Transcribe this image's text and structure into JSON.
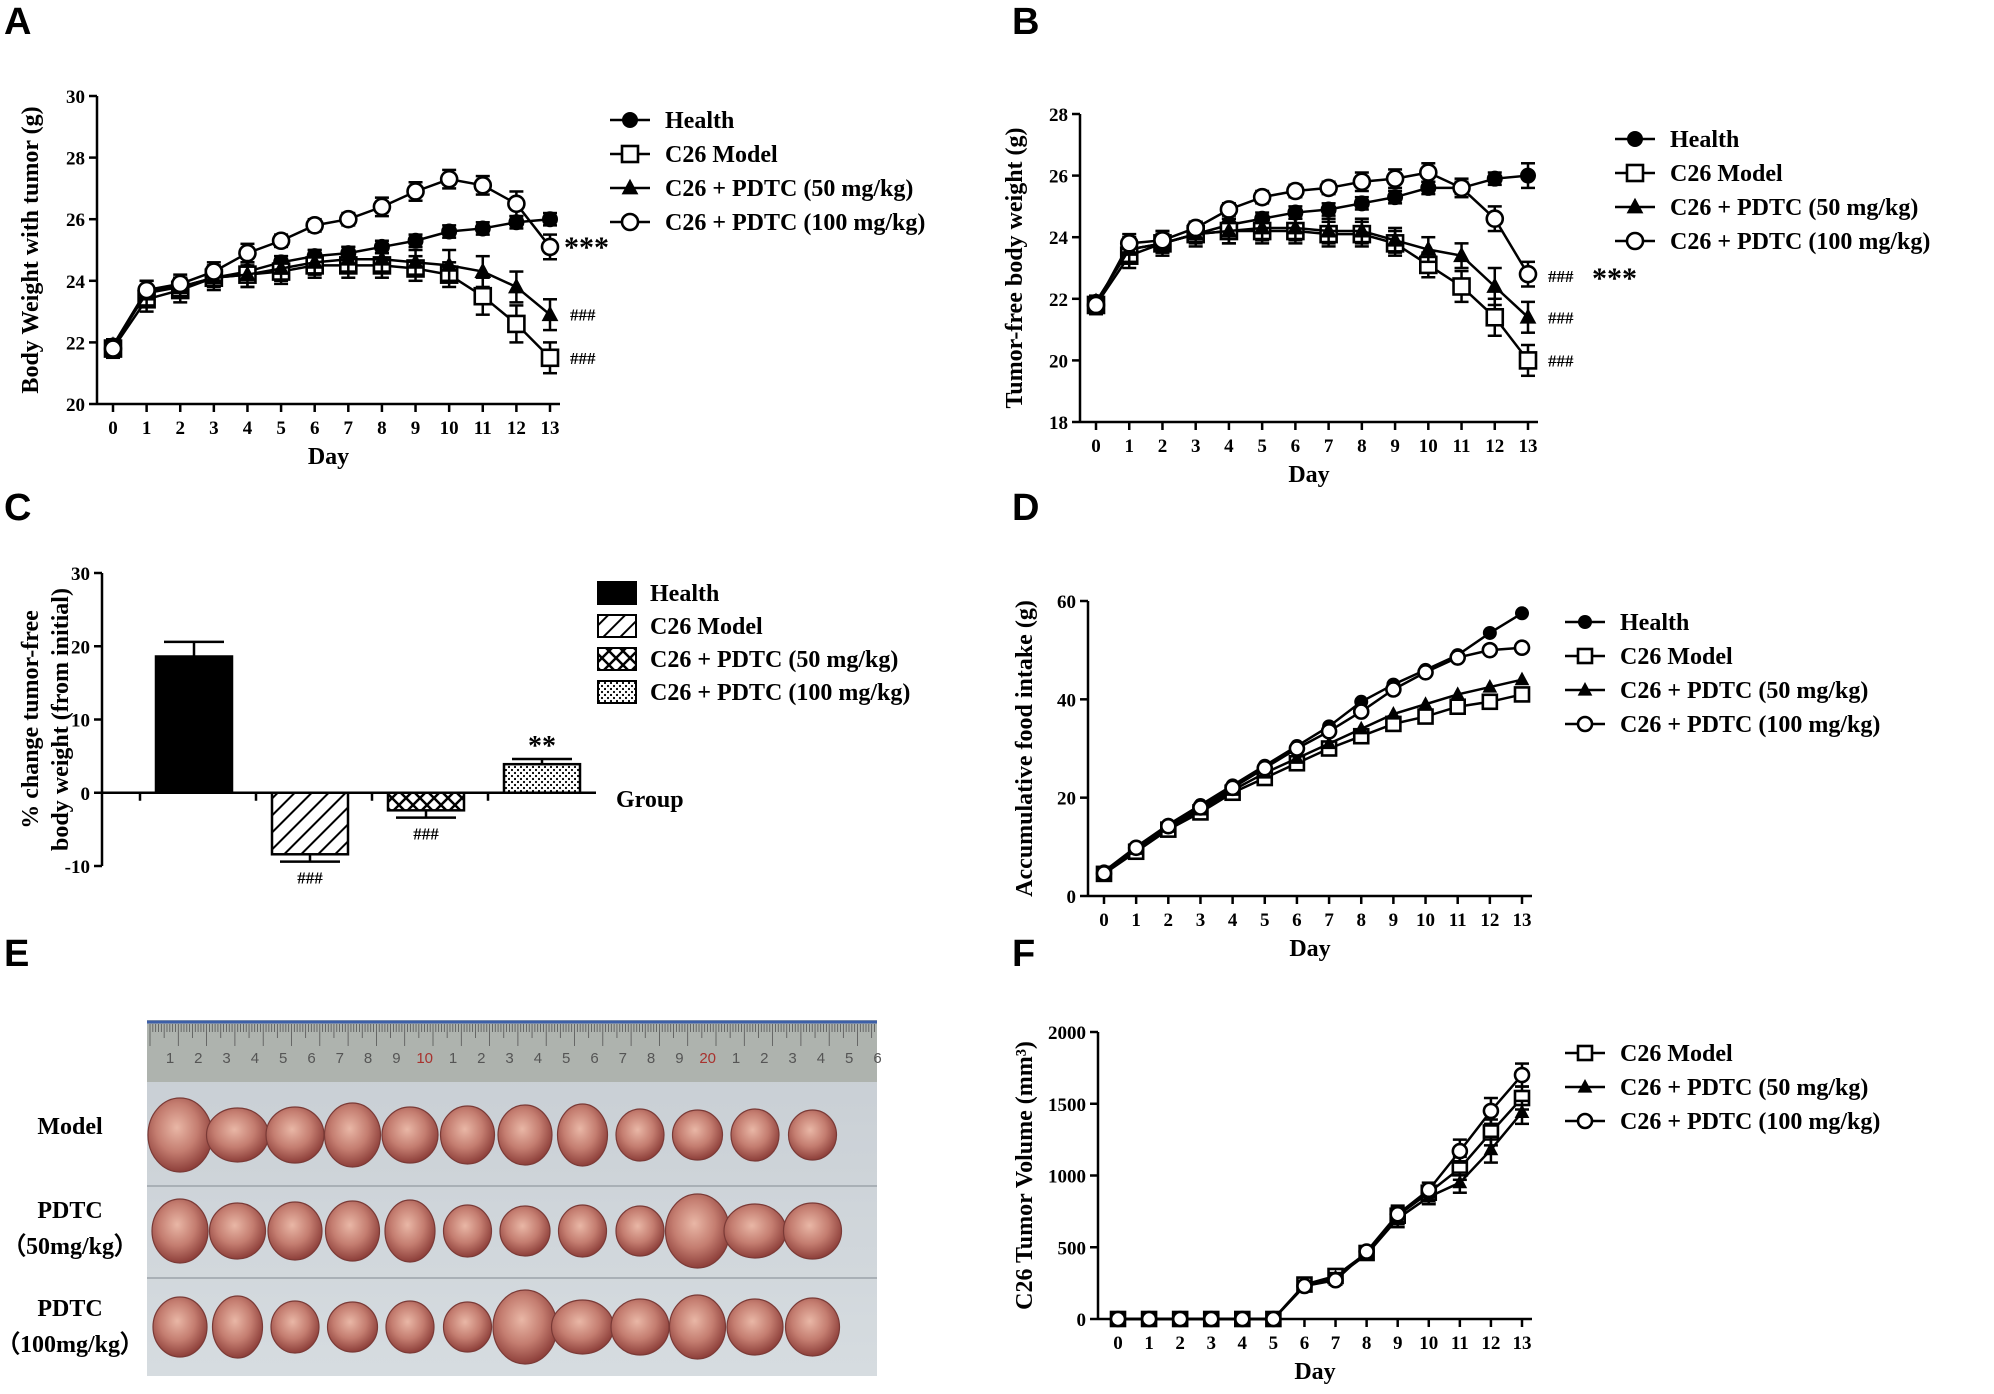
{
  "panels": {
    "A": "A",
    "B": "B",
    "C": "C",
    "D": "D",
    "E": "E",
    "F": "F"
  },
  "chart_data": [
    {
      "id": "A",
      "type": "line",
      "xlabel": "Day",
      "ylabel": "Body Weight with tumor (g)",
      "x": [
        0,
        1,
        2,
        3,
        4,
        5,
        6,
        7,
        8,
        9,
        10,
        11,
        12,
        13
      ],
      "xticks": [
        "0",
        "1",
        "2",
        "3",
        "4",
        "5",
        "6",
        "7",
        "8",
        "9",
        "10",
        "11",
        "12",
        "13"
      ],
      "yticks": [
        "20",
        "22",
        "24",
        "26",
        "28",
        "30"
      ],
      "ylim": [
        20,
        30
      ],
      "series": [
        {
          "name": "Health",
          "marker": "filled-circle",
          "values": [
            21.9,
            23.7,
            23.8,
            24.1,
            24.3,
            24.6,
            24.8,
            24.9,
            25.1,
            25.3,
            25.6,
            25.7,
            25.9,
            26.0
          ],
          "err": [
            0.2,
            0.3,
            0.3,
            0.2,
            0.2,
            0.2,
            0.2,
            0.2,
            0.2,
            0.2,
            0.2,
            0.2,
            0.2,
            0.2
          ]
        },
        {
          "name": "C26 Model",
          "marker": "open-square",
          "values": [
            21.8,
            23.4,
            23.7,
            24.1,
            24.2,
            24.3,
            24.5,
            24.5,
            24.5,
            24.4,
            24.2,
            23.5,
            22.6,
            21.5
          ],
          "err": [
            0.3,
            0.4,
            0.4,
            0.4,
            0.4,
            0.4,
            0.4,
            0.4,
            0.4,
            0.4,
            0.4,
            0.6,
            0.6,
            0.5
          ]
        },
        {
          "name": "C26 + PDTC (50 mg/kg)",
          "marker": "filled-triangle",
          "values": [
            21.9,
            23.6,
            23.8,
            24.1,
            24.2,
            24.4,
            24.6,
            24.7,
            24.7,
            24.6,
            24.5,
            24.3,
            23.8,
            22.9
          ],
          "err": [
            0.2,
            0.4,
            0.3,
            0.3,
            0.4,
            0.4,
            0.4,
            0.4,
            0.4,
            0.4,
            0.5,
            0.5,
            0.5,
            0.5
          ]
        },
        {
          "name": "C26 + PDTC (100 mg/kg)",
          "marker": "open-circle",
          "values": [
            21.8,
            23.7,
            23.9,
            24.3,
            24.9,
            25.3,
            25.8,
            26.0,
            26.4,
            26.9,
            27.3,
            27.1,
            26.5,
            25.1
          ],
          "err": [
            0.2,
            0.3,
            0.3,
            0.3,
            0.3,
            0.2,
            0.2,
            0.2,
            0.3,
            0.3,
            0.3,
            0.3,
            0.4,
            0.4
          ]
        }
      ],
      "legend": [
        "Health",
        "C26 Model",
        "C26 + PDTC (50 mg/kg)",
        "C26 + PDTC (100 mg/kg)"
      ],
      "annotations": [
        "***",
        "###",
        "###"
      ]
    },
    {
      "id": "B",
      "type": "line",
      "xlabel": "Day",
      "ylabel": "Tumor-free body weight (g)",
      "x": [
        0,
        1,
        2,
        3,
        4,
        5,
        6,
        7,
        8,
        9,
        10,
        11,
        12,
        13
      ],
      "xticks": [
        "0",
        "1",
        "2",
        "3",
        "4",
        "5",
        "6",
        "7",
        "8",
        "9",
        "10",
        "11",
        "12",
        "13"
      ],
      "yticks": [
        "18",
        "20",
        "22",
        "24",
        "26",
        "28"
      ],
      "ylim": [
        18,
        28
      ],
      "series": [
        {
          "name": "Health",
          "marker": "filled-circle",
          "values": [
            21.9,
            23.6,
            23.8,
            24.1,
            24.4,
            24.6,
            24.8,
            24.9,
            25.1,
            25.3,
            25.6,
            25.6,
            25.9,
            26.0
          ],
          "err": [
            0.2,
            0.3,
            0.3,
            0.2,
            0.2,
            0.2,
            0.2,
            0.2,
            0.2,
            0.2,
            0.2,
            0.2,
            0.2,
            0.4
          ]
        },
        {
          "name": "C26 Model",
          "marker": "open-square",
          "values": [
            21.8,
            23.4,
            23.8,
            24.1,
            24.2,
            24.2,
            24.2,
            24.1,
            24.1,
            23.8,
            23.1,
            22.4,
            21.4,
            20.0
          ],
          "err": [
            0.3,
            0.4,
            0.4,
            0.4,
            0.4,
            0.4,
            0.4,
            0.4,
            0.4,
            0.4,
            0.4,
            0.5,
            0.6,
            0.5
          ]
        },
        {
          "name": "C26 + PDTC (50 mg/kg)",
          "marker": "filled-triangle",
          "values": [
            21.9,
            23.6,
            23.8,
            24.1,
            24.2,
            24.3,
            24.3,
            24.2,
            24.2,
            23.9,
            23.6,
            23.4,
            22.4,
            21.4
          ],
          "err": [
            0.2,
            0.4,
            0.3,
            0.3,
            0.4,
            0.4,
            0.4,
            0.4,
            0.4,
            0.4,
            0.4,
            0.4,
            0.6,
            0.5
          ]
        },
        {
          "name": "C26 + PDTC (100 mg/kg)",
          "marker": "open-circle",
          "values": [
            21.8,
            23.8,
            23.9,
            24.3,
            24.9,
            25.3,
            25.5,
            25.6,
            25.8,
            25.9,
            26.1,
            25.6,
            24.6,
            22.8
          ],
          "err": [
            0.2,
            0.3,
            0.3,
            0.2,
            0.2,
            0.2,
            0.2,
            0.2,
            0.3,
            0.3,
            0.3,
            0.3,
            0.4,
            0.4
          ]
        }
      ],
      "legend": [
        "Health",
        "C26 Model",
        "C26 + PDTC (50 mg/kg)",
        "C26 + PDTC (100 mg/kg)"
      ],
      "annotations": [
        "### ***",
        "###",
        "###"
      ]
    },
    {
      "id": "C",
      "type": "bar",
      "xlabel": "Group",
      "ylabel": "% change tumor-free body weight (from initial)",
      "categories": [
        "Health",
        "C26 Model",
        "C26 + PDTC (50 mg/kg)",
        "C26 + PDTC (100 mg/kg)"
      ],
      "values": [
        18.6,
        -8.4,
        -2.4,
        3.9
      ],
      "err": [
        2.0,
        1.0,
        1.0,
        0.7
      ],
      "yticks": [
        "-10",
        "0",
        "10",
        "20",
        "30"
      ],
      "ylim": [
        -10,
        30
      ],
      "legend": [
        "Health",
        "C26 Model",
        "C26 + PDTC (50 mg/kg)",
        "C26 + PDTC (100 mg/kg)"
      ],
      "annotations": [
        "###",
        "###",
        "**"
      ]
    },
    {
      "id": "D",
      "type": "line",
      "xlabel": "Day",
      "ylabel": "Accumulative food intake (g)",
      "x": [
        0,
        1,
        2,
        3,
        4,
        5,
        6,
        7,
        8,
        9,
        10,
        11,
        12,
        13
      ],
      "xticks": [
        "0",
        "1",
        "2",
        "3",
        "4",
        "5",
        "6",
        "7",
        "8",
        "9",
        "10",
        "11",
        "12",
        "13"
      ],
      "yticks": [
        "0",
        "20",
        "40",
        "60"
      ],
      "ylim": [
        0,
        60
      ],
      "series": [
        {
          "name": "Health",
          "marker": "filled-circle",
          "values": [
            5,
            10,
            14.5,
            18.5,
            22.5,
            26.5,
            30.5,
            34.5,
            39.5,
            43,
            46,
            49,
            53.5,
            57.5
          ]
        },
        {
          "name": "C26 Model",
          "marker": "open-square",
          "values": [
            4.5,
            9,
            13.5,
            17,
            21,
            24,
            27,
            30,
            32.5,
            35,
            36.5,
            38.5,
            39.5,
            41
          ]
        },
        {
          "name": "C26 + PDTC (50 mg/kg)",
          "marker": "filled-triangle",
          "values": [
            4.8,
            9.5,
            14,
            17.5,
            21.5,
            25,
            28,
            31,
            34,
            37,
            39,
            41,
            42.5,
            44
          ]
        },
        {
          "name": "C26 + PDTC (100 mg/kg)",
          "marker": "open-circle",
          "values": [
            4.6,
            9.8,
            14.2,
            18,
            22,
            26,
            30,
            33.5,
            37.5,
            42,
            45.5,
            48.5,
            50,
            50.5
          ]
        }
      ],
      "legend": [
        "Health",
        "C26 Model",
        "C26 + PDTC (50 mg/kg)",
        "C26 + PDTC (100 mg/kg)"
      ]
    },
    {
      "id": "F",
      "type": "line",
      "xlabel": "Day",
      "ylabel": "C26 Tumor Volume (mm³)",
      "x": [
        0,
        1,
        2,
        3,
        4,
        5,
        6,
        7,
        8,
        9,
        10,
        11,
        12,
        13
      ],
      "xticks": [
        "0",
        "1",
        "2",
        "3",
        "4",
        "5",
        "6",
        "7",
        "8",
        "9",
        "10",
        "11",
        "12",
        "13"
      ],
      "yticks": [
        "0",
        "500",
        "1000",
        "1500",
        "2000"
      ],
      "ylim": [
        0,
        2000
      ],
      "series": [
        {
          "name": "C26 Model",
          "marker": "open-square",
          "values": [
            0,
            0,
            0,
            0,
            0,
            0,
            240,
            300,
            460,
            720,
            880,
            1050,
            1300,
            1540
          ],
          "err": [
            0,
            0,
            0,
            0,
            0,
            0,
            30,
            30,
            30,
            60,
            50,
            80,
            90,
            80
          ]
        },
        {
          "name": "C26 + PDTC (50 mg/kg)",
          "marker": "filled-triangle",
          "values": [
            0,
            0,
            0,
            0,
            0,
            0,
            230,
            290,
            450,
            700,
            850,
            950,
            1180,
            1440
          ],
          "err": [
            0,
            0,
            0,
            0,
            0,
            0,
            30,
            30,
            30,
            60,
            50,
            70,
            90,
            80
          ]
        },
        {
          "name": "C26 + PDTC (100 mg/kg)",
          "marker": "open-circle",
          "values": [
            0,
            0,
            0,
            0,
            0,
            0,
            230,
            270,
            470,
            730,
            900,
            1170,
            1450,
            1700
          ],
          "err": [
            0,
            0,
            0,
            0,
            0,
            0,
            30,
            30,
            30,
            60,
            50,
            80,
            90,
            80
          ]
        }
      ],
      "legend": [
        "C26 Model",
        "C26 + PDTC (50 mg/kg)",
        "C26 + PDTC (100 mg/kg)"
      ]
    }
  ],
  "photo": {
    "row_labels": [
      "Model",
      "PDTC",
      "（50mg/kg）",
      "PDTC",
      "（100mg/kg）"
    ],
    "ruler_numbers": [
      "1",
      "2",
      "3",
      "4",
      "5",
      "6",
      "7",
      "8",
      "9",
      "10",
      "1",
      "2",
      "3",
      "4",
      "5",
      "6",
      "7",
      "8",
      "9",
      "20",
      "1",
      "2",
      "3",
      "4",
      "5",
      "6"
    ]
  }
}
